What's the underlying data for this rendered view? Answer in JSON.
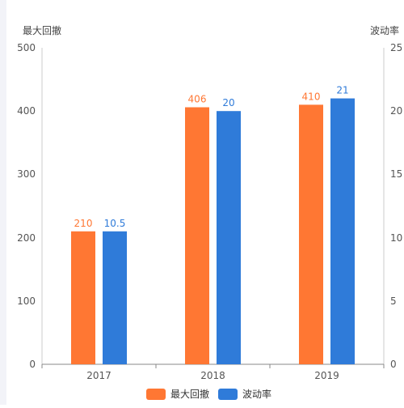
{
  "chart_data": {
    "type": "bar",
    "categories": [
      "2017",
      "2018",
      "2019"
    ],
    "series": [
      {
        "name": "最大回撤",
        "values": [
          210,
          406,
          410
        ],
        "color": "#ff7733",
        "axis": "left"
      },
      {
        "name": "波动率",
        "values": [
          10.5,
          20,
          21
        ],
        "color": "#2f7bd9",
        "axis": "right"
      }
    ],
    "y_left": {
      "label": "最大回撤",
      "range": [
        0,
        500
      ],
      "ticks": [
        "0",
        "100",
        "200",
        "300",
        "400",
        "500"
      ]
    },
    "y_right": {
      "label": "波动率",
      "range": [
        0,
        25
      ],
      "ticks": [
        "0",
        "5",
        "10",
        "15",
        "20",
        "25"
      ]
    },
    "data_labels": [
      [
        "210",
        "406",
        "410"
      ],
      [
        "10.5",
        "20",
        "21"
      ]
    ],
    "legend": {
      "position": "bottom-center"
    },
    "grid": false
  }
}
